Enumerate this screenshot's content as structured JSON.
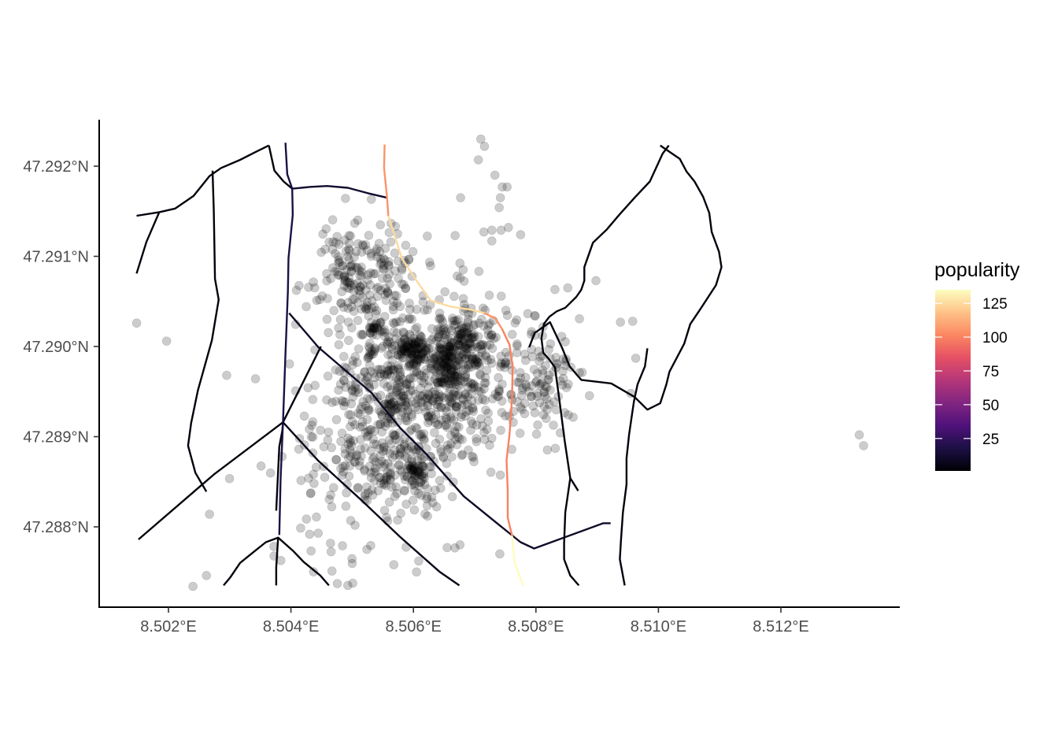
{
  "chart_data": {
    "type": "scatter",
    "title": "",
    "xlabel": "",
    "ylabel": "",
    "xlim": [
      8.50088,
      8.51385
    ],
    "ylim": [
      47.28718,
      47.29246
    ],
    "x_ticks": [
      8.502,
      8.504,
      8.506,
      8.508,
      8.51,
      8.512
    ],
    "x_tick_labels": [
      "8.502°E",
      "8.504°E",
      "8.506°E",
      "8.508°E",
      "8.510°E",
      "8.512°E"
    ],
    "y_ticks": [
      47.288,
      47.289,
      47.29,
      47.291,
      47.292
    ],
    "y_tick_labels": [
      "47.288°N",
      "47.289°N",
      "47.290°N",
      "47.291°N",
      "47.292°N"
    ],
    "grid": false,
    "points": {
      "description": "semi-transparent black points (alpha ~0.2)",
      "color": "#000000",
      "opacity": 0.2,
      "clusters": [
        {
          "cx": 8.50595,
          "cy": 47.28995,
          "sx": 0.00012,
          "sy": 8e-05,
          "n": 70
        },
        {
          "cx": 8.50685,
          "cy": 47.29002,
          "sx": 0.00014,
          "sy": 0.00012,
          "n": 90
        },
        {
          "cx": 8.50655,
          "cy": 47.28988,
          "sx": 0.00012,
          "sy": 0.0001,
          "n": 50
        },
        {
          "cx": 8.50608,
          "cy": 47.2886,
          "sx": 8e-05,
          "sy": 6e-05,
          "n": 35
        },
        {
          "cx": 8.50535,
          "cy": 47.29022,
          "sx": 7e-05,
          "sy": 6e-05,
          "n": 20
        },
        {
          "cx": 8.5065,
          "cy": 47.2897,
          "sx": 0.0008,
          "sy": 0.00045,
          "n": 560
        },
        {
          "cx": 8.5055,
          "cy": 47.2893,
          "sx": 0.0006,
          "sy": 0.0004,
          "n": 260
        },
        {
          "cx": 8.5052,
          "cy": 47.2908,
          "sx": 0.0004,
          "sy": 0.00032,
          "n": 190
        },
        {
          "cx": 8.5056,
          "cy": 47.2886,
          "sx": 0.00055,
          "sy": 0.00025,
          "n": 130
        },
        {
          "cx": 8.5081,
          "cy": 47.2896,
          "sx": 0.0003,
          "sy": 0.0003,
          "n": 80
        },
        {
          "cx": 8.5048,
          "cy": 47.2881,
          "sx": 0.0008,
          "sy": 0.0005,
          "n": 45
        }
      ],
      "scattered": [
        [
          8.50148,
          47.29026
        ],
        [
          8.50197,
          47.29006
        ],
        [
          8.50295,
          47.28968
        ],
        [
          8.5071,
          47.2923
        ],
        [
          8.50716,
          47.29222
        ],
        [
          8.50706,
          47.29207
        ],
        [
          8.50733,
          47.2919
        ],
        [
          8.50745,
          47.29177
        ],
        [
          8.50753,
          47.29177
        ],
        [
          8.50742,
          47.29165
        ],
        [
          8.50677,
          47.29165
        ],
        [
          8.5074,
          47.29154
        ],
        [
          8.50755,
          47.29132
        ],
        [
          8.50743,
          47.29129
        ],
        [
          8.50728,
          47.29129
        ],
        [
          8.50715,
          47.29127
        ],
        [
          8.50775,
          47.29124
        ],
        [
          8.50668,
          47.29123
        ],
        [
          8.50728,
          47.29117
        ],
        [
          8.50852,
          47.29065
        ],
        [
          8.50898,
          47.29073
        ],
        [
          8.50938,
          47.29027
        ],
        [
          8.50958,
          47.29028
        ],
        [
          8.50963,
          47.28987
        ],
        [
          8.50955,
          47.28948
        ],
        [
          8.51328,
          47.28902
        ],
        [
          8.51335,
          47.2889
        ],
        [
          8.5024,
          47.28734
        ],
        [
          8.50262,
          47.28746
        ],
        [
          8.50467,
          47.28751
        ],
        [
          8.50605,
          47.2875
        ],
        [
          8.50524,
          47.28775
        ],
        [
          8.50741,
          47.2877
        ],
        [
          8.50676,
          47.2878
        ],
        [
          8.50655,
          47.28777
        ],
        [
          8.50568,
          47.28758
        ]
      ]
    },
    "roads": [
      {
        "popularity": 3,
        "coords": [
          [
            8.50148,
            47.29145
          ],
          [
            8.50185,
            47.29149
          ],
          [
            8.50211,
            47.29153
          ],
          [
            8.50241,
            47.29167
          ],
          [
            8.50267,
            47.29189
          ],
          [
            8.50286,
            47.29198
          ],
          [
            8.50317,
            47.29207
          ],
          [
            8.50343,
            47.29216
          ],
          [
            8.50364,
            47.29223
          ]
        ]
      },
      {
        "popularity": 3,
        "coords": [
          [
            8.50148,
            47.29081
          ],
          [
            8.50164,
            47.29116
          ],
          [
            8.50185,
            47.29149
          ]
        ]
      },
      {
        "popularity": 3,
        "coords": [
          [
            8.50272,
            47.29195
          ],
          [
            8.50274,
            47.2915
          ],
          [
            8.50276,
            47.29075
          ],
          [
            8.50282,
            47.29052
          ],
          [
            8.50271,
            47.29007
          ],
          [
            8.50248,
            47.28951
          ],
          [
            8.50237,
            47.28915
          ],
          [
            8.50232,
            47.2889
          ],
          [
            8.50244,
            47.2886
          ],
          [
            8.50262,
            47.28839
          ]
        ]
      },
      {
        "popularity": 3,
        "coords": [
          [
            8.50151,
            47.28786
          ],
          [
            8.50274,
            47.28858
          ],
          [
            8.50387,
            47.28916
          ],
          [
            8.50449,
            47.29
          ]
        ]
      },
      {
        "popularity": 3,
        "coords": [
          [
            8.50387,
            47.28916
          ],
          [
            8.50386,
            47.28907
          ],
          [
            8.50381,
            47.28889
          ],
          [
            8.50376,
            47.28818
          ]
        ]
      },
      {
        "popularity": 3,
        "coords": [
          [
            8.50379,
            47.28788
          ],
          [
            8.50376,
            47.28755
          ],
          [
            8.50376,
            47.28735
          ]
        ]
      },
      {
        "popularity": 3,
        "coords": [
          [
            8.5029,
            47.28735
          ],
          [
            8.50301,
            47.28744
          ],
          [
            8.50317,
            47.2876
          ],
          [
            8.50337,
            47.28771
          ],
          [
            8.50359,
            47.28783
          ],
          [
            8.50379,
            47.28788
          ],
          [
            8.50404,
            47.28773
          ],
          [
            8.50421,
            47.28761
          ],
          [
            8.50448,
            47.28746
          ],
          [
            8.50462,
            47.28735
          ]
        ]
      },
      {
        "popularity": 3,
        "coords": [
          [
            8.50364,
            47.29223
          ],
          [
            8.50373,
            47.29195
          ],
          [
            8.50388,
            47.29183
          ],
          [
            8.50402,
            47.29175
          ]
        ]
      },
      {
        "popularity": 18,
        "coords": [
          [
            8.50391,
            47.29226
          ],
          [
            8.50394,
            47.29191
          ],
          [
            8.50402,
            47.29175
          ],
          [
            8.50403,
            47.29146
          ],
          [
            8.50396,
            47.29098
          ],
          [
            8.50395,
            47.29061
          ],
          [
            8.50393,
            47.29027
          ],
          [
            8.50391,
            47.28991
          ],
          [
            8.50387,
            47.28916
          ],
          [
            8.50383,
            47.28852
          ],
          [
            8.50381,
            47.28791
          ]
        ]
      },
      {
        "popularity": 12,
        "coords": [
          [
            8.50402,
            47.29175
          ],
          [
            8.50432,
            47.29177
          ],
          [
            8.50459,
            47.29178
          ],
          [
            8.50493,
            47.29176
          ],
          [
            8.50526,
            47.2917
          ],
          [
            8.50557,
            47.29165
          ]
        ]
      },
      {
        "popularity": 10,
        "coords": [
          [
            8.50397,
            47.29037
          ],
          [
            8.50445,
            47.28999
          ],
          [
            8.50531,
            47.28949
          ],
          [
            8.50578,
            47.2891
          ],
          [
            8.50622,
            47.2888
          ],
          [
            8.50682,
            47.28834
          ],
          [
            8.50742,
            47.28801
          ],
          [
            8.50775,
            47.28783
          ],
          [
            8.50797,
            47.28776
          ],
          [
            8.5091,
            47.28804
          ],
          [
            8.50922,
            47.28804
          ]
        ]
      },
      {
        "popularity": 6,
        "coords": [
          [
            8.50387,
            47.28916
          ],
          [
            8.50445,
            47.28873
          ],
          [
            8.50516,
            47.28829
          ],
          [
            8.50578,
            47.28789
          ],
          [
            8.50643,
            47.2875
          ],
          [
            8.50675,
            47.28735
          ]
        ]
      },
      {
        "popularity": 105,
        "coords": [
          [
            8.50553,
            47.29224
          ],
          [
            8.50552,
            47.29198
          ],
          [
            8.50557,
            47.29165
          ],
          [
            8.50559,
            47.29145
          ]
        ]
      },
      {
        "popularity": 125,
        "coords": [
          [
            8.50559,
            47.29145
          ],
          [
            8.50581,
            47.29098
          ],
          [
            8.50606,
            47.29072
          ],
          [
            8.50628,
            47.29051
          ],
          [
            8.50662,
            47.29044
          ],
          [
            8.50693,
            47.29041
          ],
          [
            8.50716,
            47.29037
          ]
        ]
      },
      {
        "popularity": 105,
        "coords": [
          [
            8.50716,
            47.29037
          ],
          [
            8.50734,
            47.29031
          ],
          [
            8.50745,
            47.29019
          ]
        ]
      },
      {
        "popularity": 100,
        "coords": [
          [
            8.50745,
            47.29019
          ],
          [
            8.50757,
            47.29002
          ],
          [
            8.50762,
            47.28978
          ],
          [
            8.50761,
            47.28943
          ],
          [
            8.50757,
            47.28903
          ],
          [
            8.50752,
            47.28874
          ],
          [
            8.50754,
            47.2884
          ],
          [
            8.50754,
            47.2881
          ],
          [
            8.50761,
            47.2879
          ]
        ]
      },
      {
        "popularity": 135,
        "coords": [
          [
            8.50761,
            47.2879
          ],
          [
            8.50765,
            47.28761
          ],
          [
            8.50779,
            47.28735
          ]
        ]
      },
      {
        "popularity": 3,
        "coords": [
          [
            8.50789,
            47.28999
          ],
          [
            8.50798,
            47.29015
          ],
          [
            8.50823,
            47.29027
          ],
          [
            8.50843,
            47.28998
          ],
          [
            8.50855,
            47.28978
          ],
          [
            8.50874,
            47.28963
          ],
          [
            8.50923,
            47.28959
          ],
          [
            8.50961,
            47.28944
          ],
          [
            8.50982,
            47.2893
          ],
          [
            8.51003,
            47.28937
          ],
          [
            8.51013,
            47.28958
          ],
          [
            8.51018,
            47.28972
          ],
          [
            8.51042,
            47.29003
          ],
          [
            8.51052,
            47.29025
          ],
          [
            8.51068,
            47.29041
          ],
          [
            8.51094,
            47.29068
          ],
          [
            8.51103,
            47.29088
          ],
          [
            8.51099,
            47.29105
          ],
          [
            8.51087,
            47.29127
          ],
          [
            8.51083,
            47.29148
          ],
          [
            8.51073,
            47.29166
          ],
          [
            8.51059,
            47.29183
          ],
          [
            8.51046,
            47.29194
          ],
          [
            8.51035,
            47.29208
          ],
          [
            8.51003,
            47.29223
          ]
        ]
      },
      {
        "popularity": 3,
        "coords": [
          [
            8.50869,
            47.2884
          ],
          [
            8.50856,
            47.28854
          ],
          [
            8.50847,
            47.28895
          ],
          [
            8.50838,
            47.28942
          ],
          [
            8.50831,
            47.28977
          ],
          [
            8.5082,
            47.28987
          ],
          [
            8.50812,
            47.28993
          ],
          [
            8.50809,
            47.29009
          ],
          [
            8.50813,
            47.29025
          ],
          [
            8.50822,
            47.29033
          ],
          [
            8.50834,
            47.29039
          ],
          [
            8.50848,
            47.29043
          ],
          [
            8.50866,
            47.29055
          ],
          [
            8.50874,
            47.29063
          ],
          [
            8.50879,
            47.29073
          ],
          [
            8.50879,
            47.29088
          ],
          [
            8.50893,
            47.29115
          ],
          [
            8.50916,
            47.2913
          ],
          [
            8.50936,
            47.29146
          ],
          [
            8.50961,
            47.29165
          ],
          [
            8.50986,
            47.29183
          ],
          [
            8.51007,
            47.29214
          ],
          [
            8.51017,
            47.29223
          ]
        ]
      },
      {
        "popularity": 3,
        "coords": [
          [
            8.5087,
            47.28735
          ],
          [
            8.50856,
            47.28746
          ],
          [
            8.50846,
            47.28764
          ],
          [
            8.50846,
            47.28782
          ],
          [
            8.50848,
            47.28816
          ],
          [
            8.50856,
            47.28854
          ]
        ]
      },
      {
        "popularity": 3,
        "coords": [
          [
            8.50945,
            47.28735
          ],
          [
            8.50937,
            47.28764
          ],
          [
            8.50939,
            47.28786
          ],
          [
            8.50942,
            47.28816
          ],
          [
            8.50948,
            47.28847
          ],
          [
            8.50948,
            47.28876
          ],
          [
            8.50952,
            47.28902
          ],
          [
            8.50957,
            47.28925
          ],
          [
            8.5096,
            47.28939
          ],
          [
            8.50966,
            47.28958
          ],
          [
            8.50978,
            47.28978
          ],
          [
            8.50982,
            47.28998
          ]
        ]
      }
    ],
    "legend": {
      "title": "popularity",
      "type": "colorbar",
      "placement": "right",
      "colormap": "magma",
      "range": [
        1,
        135
      ],
      "tick_values": [
        25,
        50,
        75,
        100,
        125
      ],
      "tick_labels": [
        "25",
        "50",
        "75",
        "100",
        "125"
      ],
      "color_stops": [
        "#000004",
        "#1c1044",
        "#4f127b",
        "#812581",
        "#b5367a",
        "#e55064",
        "#fb8761",
        "#fec287",
        "#fcfdbf"
      ]
    },
    "axis_color": "#000000"
  }
}
